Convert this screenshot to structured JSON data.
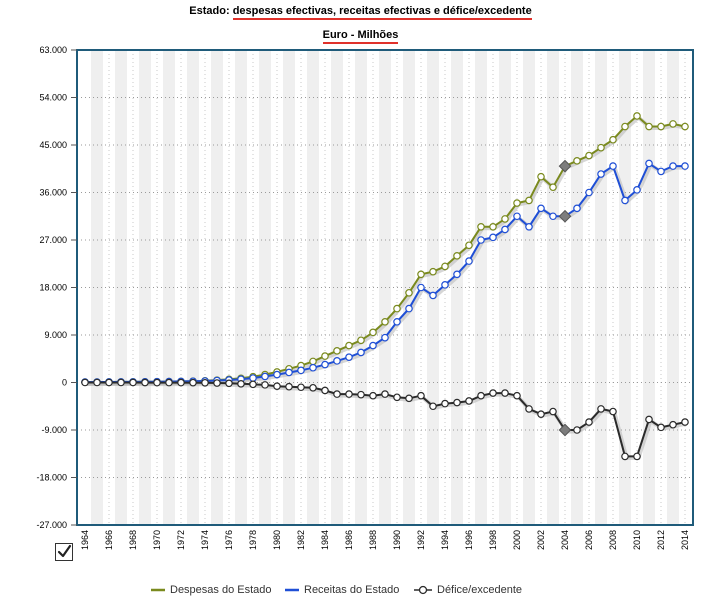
{
  "title": {
    "prefix": "Estado:",
    "main": "despesas efectivas, receitas efectivas e défice/excedente"
  },
  "subtitle": "Euro - Milhões",
  "colors": {
    "despesas": "#7a8a1e",
    "receitas": "#1f4fd6",
    "defice": "#2b2b2b",
    "frame": "#1f5b7a",
    "band": "#efefef",
    "grid": "#9a9a9a",
    "marker_highlight": "#7d7d7d"
  },
  "legend": [
    {
      "label": "Despesas do Estado",
      "swatch": "line",
      "color": "#7a8a1e"
    },
    {
      "label": "Receitas do Estado",
      "swatch": "line",
      "color": "#1f4fd6"
    },
    {
      "label": "Défice/excedente",
      "swatch": "marker",
      "color": "#2b2b2b"
    }
  ],
  "chart_data": {
    "type": "line",
    "title": "Estado: despesas efectivas, receitas efectivas e défice/excedente",
    "subtitle": "Euro - Milhões",
    "xlabel": "",
    "ylabel": "",
    "ylim": [
      -27000,
      63000
    ],
    "y_ticks": [
      63000,
      54000,
      45000,
      36000,
      27000,
      18000,
      9000,
      0,
      -9000,
      -18000,
      -27000
    ],
    "y_tick_labels": [
      "63.000",
      "54.000",
      "45.000",
      "36.000",
      "27.000",
      "18.000",
      "9.000",
      "0",
      "-9.000",
      "-18.000",
      "-27.000"
    ],
    "x_tick_labels": [
      "1964",
      "1966",
      "1968",
      "1970",
      "1972",
      "1974",
      "1976",
      "1978",
      "1980",
      "1982",
      "1984",
      "1986",
      "1988",
      "1990",
      "1992",
      "1994",
      "1996",
      "1998",
      "2000",
      "2002",
      "2004",
      "2006",
      "2008",
      "2010",
      "2012",
      "2014"
    ],
    "grid": true,
    "legend_position": "bottom",
    "highlight_year": 2004,
    "x": [
      1964,
      1965,
      1966,
      1967,
      1968,
      1969,
      1970,
      1971,
      1972,
      1973,
      1974,
      1975,
      1976,
      1977,
      1978,
      1979,
      1980,
      1981,
      1982,
      1983,
      1984,
      1985,
      1986,
      1987,
      1988,
      1989,
      1990,
      1991,
      1992,
      1993,
      1994,
      1995,
      1996,
      1997,
      1998,
      1999,
      2000,
      2001,
      2002,
      2003,
      2004,
      2005,
      2006,
      2007,
      2008,
      2009,
      2010,
      2011,
      2012,
      2013,
      2014
    ],
    "series": [
      {
        "name": "Despesas do Estado",
        "values": [
          80,
          90,
          100,
          110,
          125,
          140,
          160,
          180,
          210,
          250,
          330,
          450,
          600,
          800,
          1100,
          1500,
          2000,
          2600,
          3200,
          4000,
          5000,
          6000,
          7000,
          8000,
          9500,
          11500,
          14000,
          17000,
          20500,
          21000,
          22000,
          24000,
          26000,
          29500,
          29500,
          31000,
          34000,
          34500,
          39000,
          37000,
          41000,
          42000,
          43000,
          44500,
          46000,
          48500,
          50500,
          48500,
          48500,
          49000,
          48500
        ]
      },
      {
        "name": "Receitas do Estado",
        "values": [
          80,
          90,
          100,
          110,
          120,
          135,
          150,
          170,
          200,
          230,
          280,
          380,
          480,
          620,
          850,
          1150,
          1500,
          1900,
          2300,
          2800,
          3400,
          4100,
          4800,
          5700,
          7000,
          8500,
          11500,
          14000,
          18000,
          16500,
          18500,
          20500,
          23000,
          27000,
          27500,
          29000,
          31500,
          29500,
          33000,
          31500,
          31500,
          33000,
          36000,
          39500,
          41000,
          34500,
          36500,
          41500,
          40000,
          41000,
          41000
        ]
      },
      {
        "name": "Défice/excedente",
        "values": [
          0,
          0,
          0,
          0,
          0,
          -10,
          -20,
          -20,
          -20,
          -30,
          -50,
          -100,
          -150,
          -250,
          -350,
          -450,
          -700,
          -800,
          -900,
          -1000,
          -1500,
          -2200,
          -2200,
          -2300,
          -2500,
          -2200,
          -2800,
          -3000,
          -2500,
          -4500,
          -4000,
          -3800,
          -3500,
          -2500,
          -2000,
          -2000,
          -2500,
          -5000,
          -6000,
          -5500,
          -9000,
          -9000,
          -7500,
          -5000,
          -5500,
          -14000,
          -14000,
          -7000,
          -8500,
          -8000,
          -7500
        ]
      }
    ]
  }
}
